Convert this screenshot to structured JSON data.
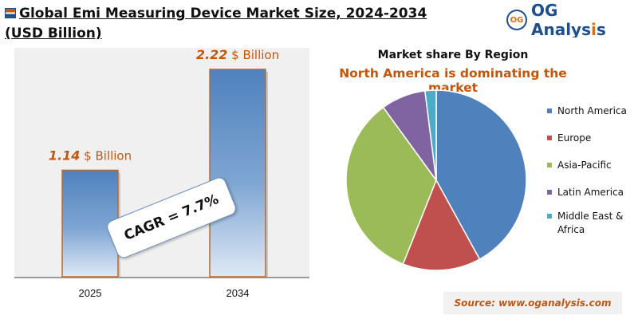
{
  "header": {
    "title_line1": "Global Emi Measuring Device Market Size, 2024-2034",
    "title_line2": "(USD Billion)"
  },
  "logo": {
    "badge": "OG",
    "name_main": "OG Analys",
    "name_accent": "i",
    "name_end": "s"
  },
  "cagr_label": "CAGR = 7.7%",
  "source": "Source: www.oganalysis.com",
  "colors": {
    "bar": "#4f81bd",
    "value_label": "#c0570f",
    "north_america": "#4f81bd",
    "europe": "#c0504d",
    "asia_pacific": "#9bbb59",
    "latin_america": "#8064a2",
    "middle_east_africa": "#4bacc6"
  },
  "chart_data": [
    {
      "type": "bar",
      "categories": [
        "2025",
        "2034"
      ],
      "values": [
        1.14,
        2.22
      ],
      "value_labels": [
        {
          "num": "1.14",
          "unit": " $ Billion"
        },
        {
          "num": "2.22",
          "unit": " $ Billion"
        }
      ],
      "title": "",
      "xlabel": "",
      "ylabel": "",
      "ylim": [
        0,
        2.45
      ],
      "grid": false
    },
    {
      "type": "pie",
      "title": "Market share By Region",
      "subtitle": "North America is dominating the market",
      "labels": [
        "North America",
        "Europe",
        "Asia-Pacific",
        "Latin America",
        "Middle East & Africa"
      ],
      "legend_lines": [
        [
          "North America"
        ],
        [
          "Europe"
        ],
        [
          "Asia-Pacific"
        ],
        [
          "Latin America"
        ],
        [
          "Middle East &",
          "Africa"
        ]
      ],
      "values": [
        42,
        14,
        34,
        8,
        2
      ],
      "legend": "right"
    }
  ]
}
